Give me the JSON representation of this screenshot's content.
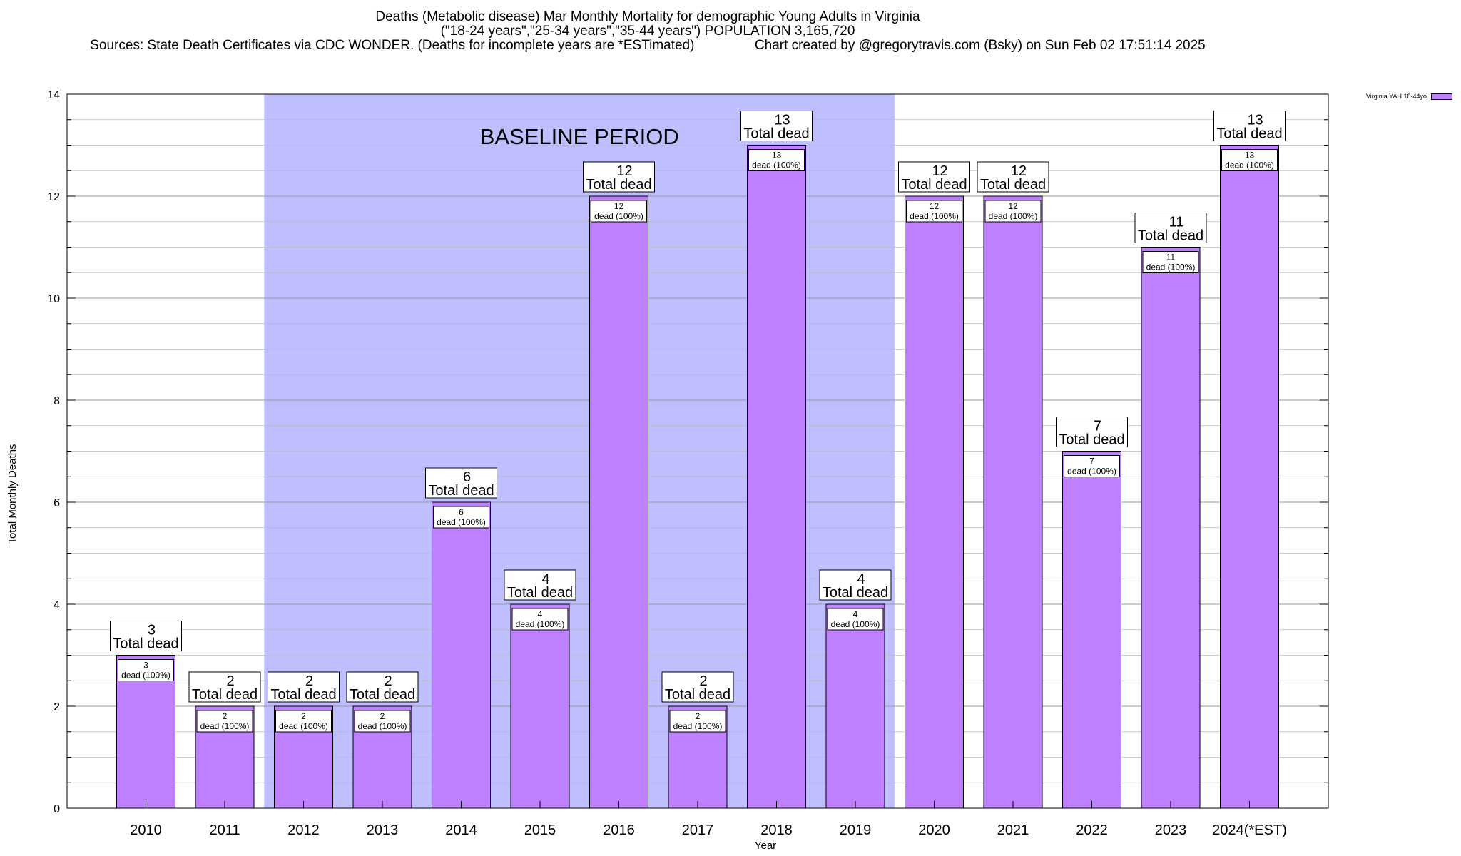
{
  "title_lines": [
    "Deaths (Metabolic disease) Mar Monthly Mortality for demographic Young Adults in Virginia",
    "(\"18-24 years\",\"25-34 years\",\"35-44 years\") POPULATION 3,165,720",
    "Sources: State Death Certificates via CDC WONDER. (Deaths for incomplete years are *ESTimated)                Chart created by @gregorytravis.com (Bsky) on Sun Feb 02 17:51:14 2025"
  ],
  "legend_label": "Virginia YAH 18-44yo",
  "colors": {
    "bar": "#bf80ff",
    "baseline": "#bfbfff",
    "grid": "#bbbbbb"
  },
  "chart_data": {
    "type": "bar",
    "categories": [
      "2010",
      "2011",
      "2012",
      "2013",
      "2014",
      "2015",
      "2016",
      "2017",
      "2018",
      "2019",
      "2020",
      "2021",
      "2022",
      "2023",
      "2024(*EST)"
    ],
    "series": [
      {
        "name": "Virginia YAH 18-44yo",
        "values": [
          3,
          2,
          2,
          2,
          6,
          4,
          12,
          2,
          13,
          4,
          12,
          12,
          7,
          11,
          13
        ]
      }
    ],
    "bar_labels": {
      "total_suffix": "Total dead",
      "inner_suffix": "dead (100%)"
    },
    "xlabel": "Year",
    "ylabel": "Total Monthly Deaths",
    "ylim": [
      0,
      14
    ],
    "yticks": [
      0,
      2,
      4,
      6,
      8,
      10,
      12,
      14
    ],
    "baseline_period": {
      "label": "BASELINE PERIOD",
      "from": "2012",
      "to": "2019"
    },
    "grid": true,
    "legend_position": "top-right"
  }
}
